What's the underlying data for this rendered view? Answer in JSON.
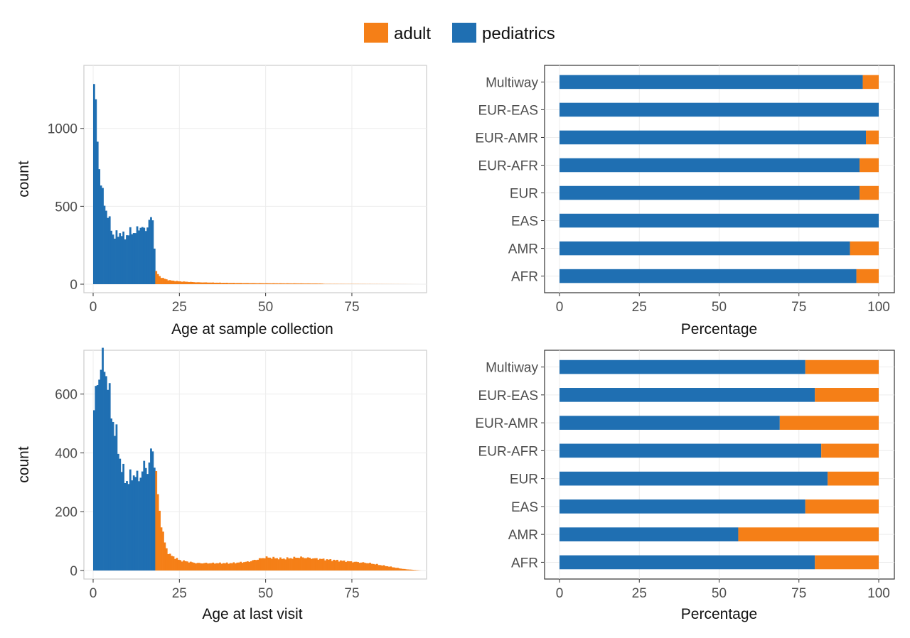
{
  "colors": {
    "adult": "#f57f17",
    "pediatrics": "#1f6fb2",
    "grid": "#ececec",
    "frame": "#cccccc"
  },
  "legend": {
    "items": [
      {
        "key": "adult",
        "label": "adult"
      },
      {
        "key": "pediatrics",
        "label": "pediatrics"
      }
    ]
  },
  "chart_data": [
    {
      "type": "bar",
      "subtype": "stacked histogram",
      "xlabel": "Age at sample collection",
      "ylabel": "count",
      "xlim": [
        0,
        95
      ],
      "ylim": [
        0,
        1350
      ],
      "xticks": [
        0,
        25,
        50,
        75
      ],
      "yticks": [
        0,
        500,
        1000
      ],
      "cutoff_age": 18,
      "bin_width": 0.5,
      "anchors": [
        [
          0,
          1320
        ],
        [
          0.5,
          1250
        ],
        [
          1,
          1000
        ],
        [
          1.5,
          850
        ],
        [
          2,
          680
        ],
        [
          3,
          540
        ],
        [
          4,
          460
        ],
        [
          5,
          380
        ],
        [
          6,
          300
        ],
        [
          7,
          320
        ],
        [
          8,
          330
        ],
        [
          9,
          300
        ],
        [
          10,
          320
        ],
        [
          11,
          340
        ],
        [
          12,
          330
        ],
        [
          13,
          350
        ],
        [
          14,
          380
        ],
        [
          15,
          330
        ],
        [
          16,
          400
        ],
        [
          17,
          420
        ],
        [
          17.5,
          400
        ],
        [
          18,
          90
        ],
        [
          19,
          55
        ],
        [
          20,
          40
        ],
        [
          22,
          25
        ],
        [
          25,
          18
        ],
        [
          30,
          12
        ],
        [
          40,
          8
        ],
        [
          50,
          6
        ],
        [
          60,
          5
        ],
        [
          66,
          4
        ],
        [
          67,
          2
        ],
        [
          80,
          1
        ],
        [
          95,
          0
        ]
      ]
    },
    {
      "type": "bar",
      "subtype": "stacked horizontal percentage",
      "xlabel": "Percentage",
      "xlim": [
        0,
        100
      ],
      "xticks": [
        0,
        25,
        50,
        75,
        100
      ],
      "categories": [
        "Multiway",
        "EUR-EAS",
        "EUR-AMR",
        "EUR-AFR",
        "EUR",
        "EAS",
        "AMR",
        "AFR"
      ],
      "series": [
        {
          "name": "pediatrics",
          "values": [
            95,
            100,
            96,
            94,
            94,
            100,
            91,
            93
          ]
        },
        {
          "name": "adult",
          "values": [
            5,
            0,
            4,
            6,
            6,
            0,
            9,
            7
          ]
        }
      ]
    },
    {
      "type": "bar",
      "subtype": "stacked histogram",
      "xlabel": "Age at last visit",
      "ylabel": "count",
      "xlim": [
        0,
        95
      ],
      "ylim": [
        0,
        720
      ],
      "xticks": [
        0,
        25,
        50,
        75
      ],
      "yticks": [
        0,
        200,
        400,
        600
      ],
      "cutoff_age": 18,
      "bin_width": 0.5,
      "anchors": [
        [
          0,
          520
        ],
        [
          1,
          620
        ],
        [
          2,
          690
        ],
        [
          3,
          710
        ],
        [
          4,
          660
        ],
        [
          5,
          560
        ],
        [
          6,
          490
        ],
        [
          7,
          440
        ],
        [
          8,
          360
        ],
        [
          9,
          320
        ],
        [
          10,
          300
        ],
        [
          11,
          320
        ],
        [
          12,
          330
        ],
        [
          13,
          310
        ],
        [
          14,
          330
        ],
        [
          15,
          360
        ],
        [
          16,
          340
        ],
        [
          17,
          420
        ],
        [
          18,
          360
        ],
        [
          19,
          220
        ],
        [
          20,
          140
        ],
        [
          21,
          80
        ],
        [
          22,
          55
        ],
        [
          25,
          35
        ],
        [
          30,
          25
        ],
        [
          40,
          25
        ],
        [
          45,
          30
        ],
        [
          50,
          45
        ],
        [
          55,
          40
        ],
        [
          60,
          45
        ],
        [
          65,
          40
        ],
        [
          70,
          35
        ],
        [
          75,
          30
        ],
        [
          80,
          25
        ],
        [
          85,
          15
        ],
        [
          90,
          5
        ],
        [
          95,
          0
        ]
      ]
    },
    {
      "type": "bar",
      "subtype": "stacked horizontal percentage",
      "xlabel": "Percentage",
      "xlim": [
        0,
        100
      ],
      "xticks": [
        0,
        25,
        50,
        75,
        100
      ],
      "categories": [
        "Multiway",
        "EUR-EAS",
        "EUR-AMR",
        "EUR-AFR",
        "EUR",
        "EAS",
        "AMR",
        "AFR"
      ],
      "series": [
        {
          "name": "pediatrics",
          "values": [
            77,
            80,
            69,
            82,
            84,
            77,
            56,
            80
          ]
        },
        {
          "name": "adult",
          "values": [
            23,
            20,
            31,
            18,
            16,
            23,
            44,
            20
          ]
        }
      ]
    }
  ]
}
